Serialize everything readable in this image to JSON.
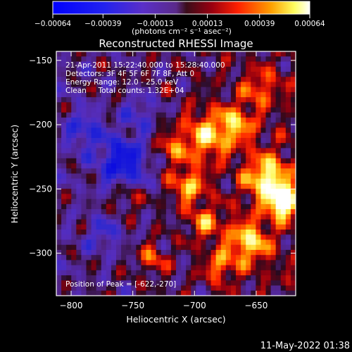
{
  "colorbar": {
    "tick_labels": [
      "-0.00064",
      "-0.00039",
      "-0.00013",
      "0.00013",
      "0.00039",
      "0.00064"
    ],
    "tick_values": [
      -0.00064,
      -0.00039,
      -0.00013,
      0.00013,
      0.00039,
      0.00064
    ],
    "range": [
      -0.00064,
      0.00064
    ],
    "units": "(photons cm⁻² s⁻¹ asec⁻²)"
  },
  "chart_data": {
    "type": "heatmap",
    "title": "Reconstructed RHESSI Image",
    "xlabel": "Heliocentric X (arcsec)",
    "ylabel": "Heliocentric Y (arcsec)",
    "xlim": [
      -812,
      -618
    ],
    "ylim": [
      -333,
      -143
    ],
    "x_ticks": [
      -800,
      -750,
      -700,
      -650
    ],
    "y_ticks": [
      -150,
      -200,
      -250,
      -300
    ],
    "x_tick_labels": [
      "-800",
      "-750",
      "-700",
      "-650"
    ],
    "y_tick_labels": [
      "-150",
      "-200",
      "-250",
      "-300"
    ],
    "annotations": [
      "21-Apr-2011 15:22:40.000 to 15:28:40.000",
      "Detectors: 3F 4F 5F 6F 7F 8F, Att 0",
      "Energy Range: 12.0 - 25.0 keV",
      "Clean     Total counts: 1.32E+04"
    ],
    "peak_label": "Position of Peak = [-622,-270]",
    "peak": [
      -622,
      -270
    ],
    "colormap": "blue-purple-red-yellow-white"
  },
  "footer": {
    "timestamp": "11-May-2022 01:38"
  }
}
